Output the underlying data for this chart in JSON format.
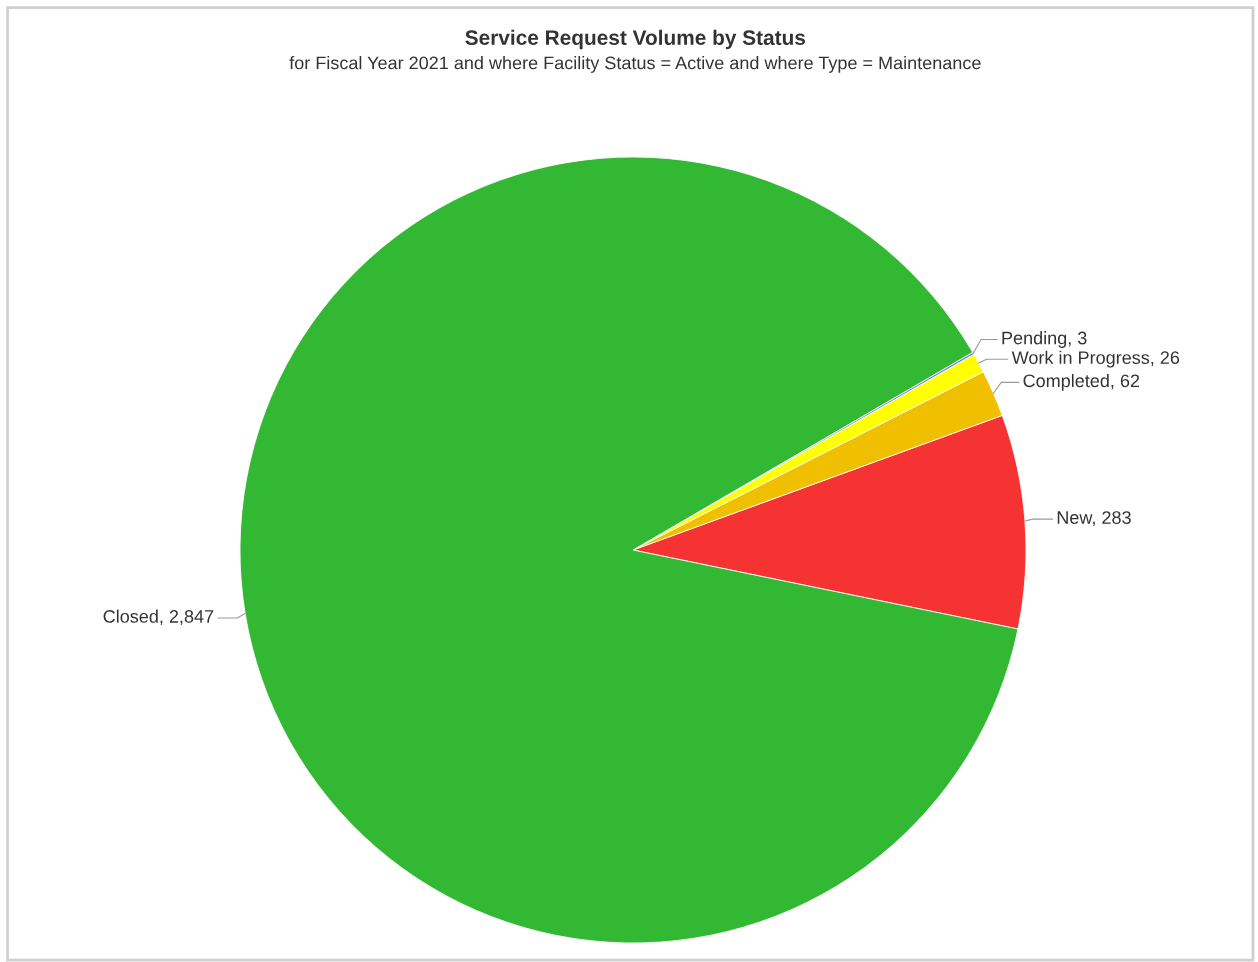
{
  "chart_data": {
    "type": "pie",
    "title": "Service Request Volume by Status",
    "subtitle": "for Fiscal Year 2021 and where Facility Status = Active and where Type = Maintenance",
    "categories": [
      "New, 283",
      "Completed, 62",
      "Work in Progress, 26",
      "Pending, 3",
      "Closed, 2,847"
    ],
    "values": [
      283,
      62,
      26,
      3,
      2847
    ],
    "colors": [
      "#f53333",
      "#f0c000",
      "#ffff00",
      "#7b7bf0",
      "#33b833"
    ]
  }
}
